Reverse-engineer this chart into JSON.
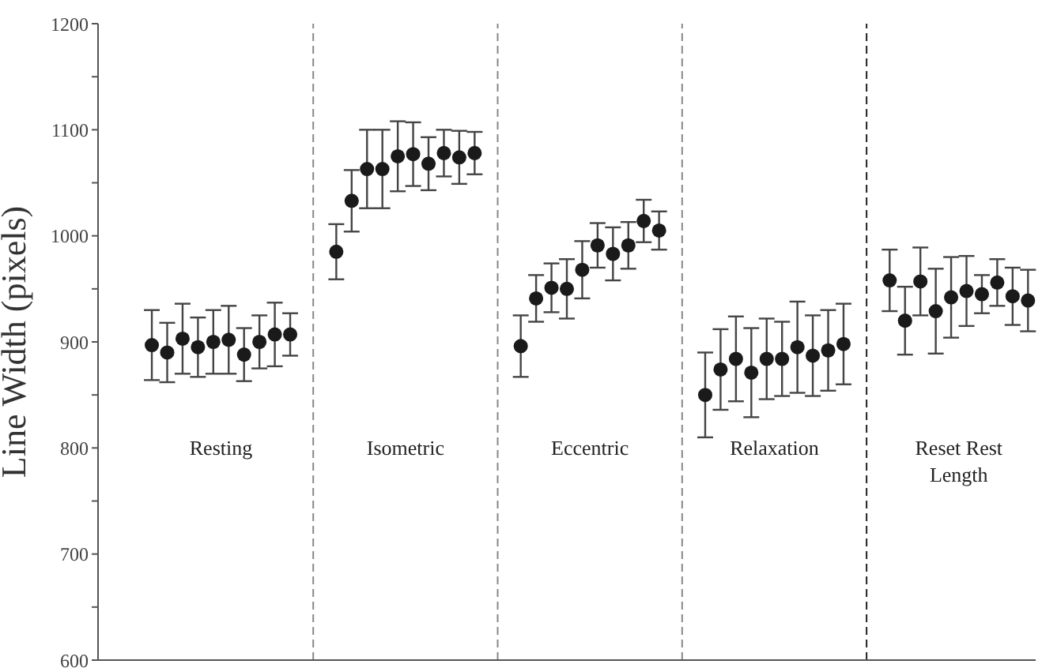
{
  "chart_data": {
    "type": "scatter",
    "ylabel": "Line Width (pixels)",
    "categories": [
      null,
      null,
      null,
      null,
      null,
      null,
      null,
      null,
      null,
      null,
      null,
      null,
      null,
      null,
      null,
      null,
      null,
      null,
      null,
      null,
      null,
      null,
      null,
      null,
      null,
      null,
      null,
      null,
      null,
      null,
      null,
      null,
      null,
      null,
      null,
      null,
      null,
      null,
      null,
      null,
      null,
      null,
      null,
      null,
      null,
      null,
      null,
      null,
      null,
      null,
      null,
      null,
      null,
      null,
      null,
      null,
      null,
      null,
      null,
      null,
      null
    ],
    "values": [
      null,
      null,
      null,
      897,
      890,
      903,
      895,
      900,
      902,
      888,
      900,
      907,
      907,
      null,
      null,
      985,
      1033,
      1063,
      1063,
      1075,
      1077,
      1068,
      1078,
      1074,
      1078,
      null,
      null,
      896,
      941,
      951,
      950,
      968,
      991,
      983,
      991,
      1014,
      1005,
      null,
      null,
      850,
      874,
      884,
      871,
      884,
      884,
      895,
      887,
      892,
      898,
      null,
      null,
      958,
      920,
      957,
      929,
      942,
      948,
      945,
      956,
      943,
      939
    ],
    "errors": [
      null,
      null,
      null,
      33,
      28,
      33,
      28,
      30,
      32,
      25,
      25,
      30,
      20,
      null,
      null,
      26,
      29,
      37,
      37,
      33,
      30,
      25,
      22,
      25,
      20,
      null,
      null,
      29,
      22,
      23,
      28,
      27,
      21,
      25,
      22,
      20,
      18,
      null,
      null,
      40,
      38,
      40,
      42,
      38,
      35,
      43,
      38,
      38,
      38,
      null,
      null,
      29,
      32,
      32,
      40,
      38,
      33,
      18,
      22,
      27,
      29
    ],
    "color": "#1a1a1a",
    "marker": "circle",
    "ylim": [
      600,
      1200
    ],
    "yticks": [
      600,
      {
        "value": 650,
        "label": null
      },
      700,
      {
        "value": 750,
        "label": null
      },
      800,
      {
        "value": 850,
        "label": null
      },
      900,
      {
        "value": 950,
        "label": null
      },
      1000,
      {
        "value": 1050,
        "label": null
      },
      1100,
      {
        "value": 1150,
        "label": null
      },
      1200
    ],
    "tick_labels": "y",
    "annotations": [
      "Resting",
      "Isometric",
      "Eccentric",
      "Relaxation",
      "Reset Rest Length"
    ]
  }
}
